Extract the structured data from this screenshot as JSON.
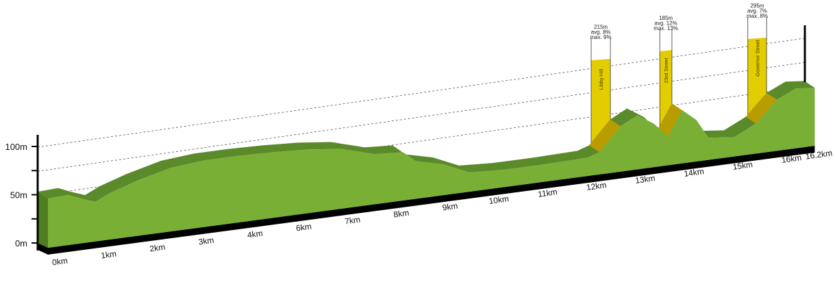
{
  "chart_data": {
    "type": "area",
    "title": "",
    "xlabel": "",
    "ylabel": "",
    "y_unit": "m",
    "ylim": [
      0,
      100
    ],
    "y_ticks": [
      0,
      25,
      50,
      75,
      100
    ],
    "y_tick_labels": [
      "0m",
      "",
      "50m",
      "",
      "100m"
    ],
    "x_tick_labels": [
      "0km",
      "1km",
      "2km",
      "3km",
      "4km",
      "6km",
      "7km",
      "8km",
      "9km",
      "10km",
      "11km",
      "12km",
      "13km",
      "14km",
      "15km",
      "16km",
      "16.2km"
    ],
    "xlim": [
      0,
      16.2
    ],
    "grid": "dashed at 50m, 75m, 100m",
    "colors": {
      "profile_face": "#7aaf35",
      "profile_top": "#5a8a2a",
      "profile_side": "#4f7d22",
      "base": "#000000",
      "climb": "#e3cc00",
      "climb_slope": "#b89c00"
    },
    "profile": {
      "km": [
        0,
        0.43,
        0.72,
        1.0,
        1.3,
        1.87,
        2.6,
        3.3,
        4.0,
        4.75,
        5.5,
        6.2,
        6.9,
        7.5,
        7.77,
        8.35,
        8.9,
        9.6,
        10.5,
        11.4,
        11.65,
        12.1,
        12.45,
        12.8,
        13.1,
        13.4,
        13.7,
        13.95,
        14.5,
        14.96,
        15.4,
        15.8,
        16.2
      ],
      "elevation_m": [
        51,
        52,
        46,
        41,
        48,
        57,
        66,
        69,
        69,
        68,
        66,
        62,
        52,
        50,
        39,
        32,
        20,
        18,
        18,
        19,
        23,
        47,
        56,
        45,
        30,
        55,
        43,
        23,
        20,
        31,
        53,
        62,
        60
      ]
    },
    "climbs": [
      {
        "name": "Libby Hill",
        "height": "215m",
        "avg": "avg. 8%",
        "max": "max. 9%",
        "start_km": 11.65,
        "end_km": 12.1
      },
      {
        "name": "23rd Street",
        "height": "185m",
        "avg": "avg. 12%",
        "max": "max. 13%",
        "start_km": 13.1,
        "end_km": 13.4
      },
      {
        "name": "Governor Street",
        "height": "295m",
        "avg": "avg. 7%",
        "max": "max. 8%",
        "start_km": 14.96,
        "end_km": 15.4
      }
    ]
  }
}
